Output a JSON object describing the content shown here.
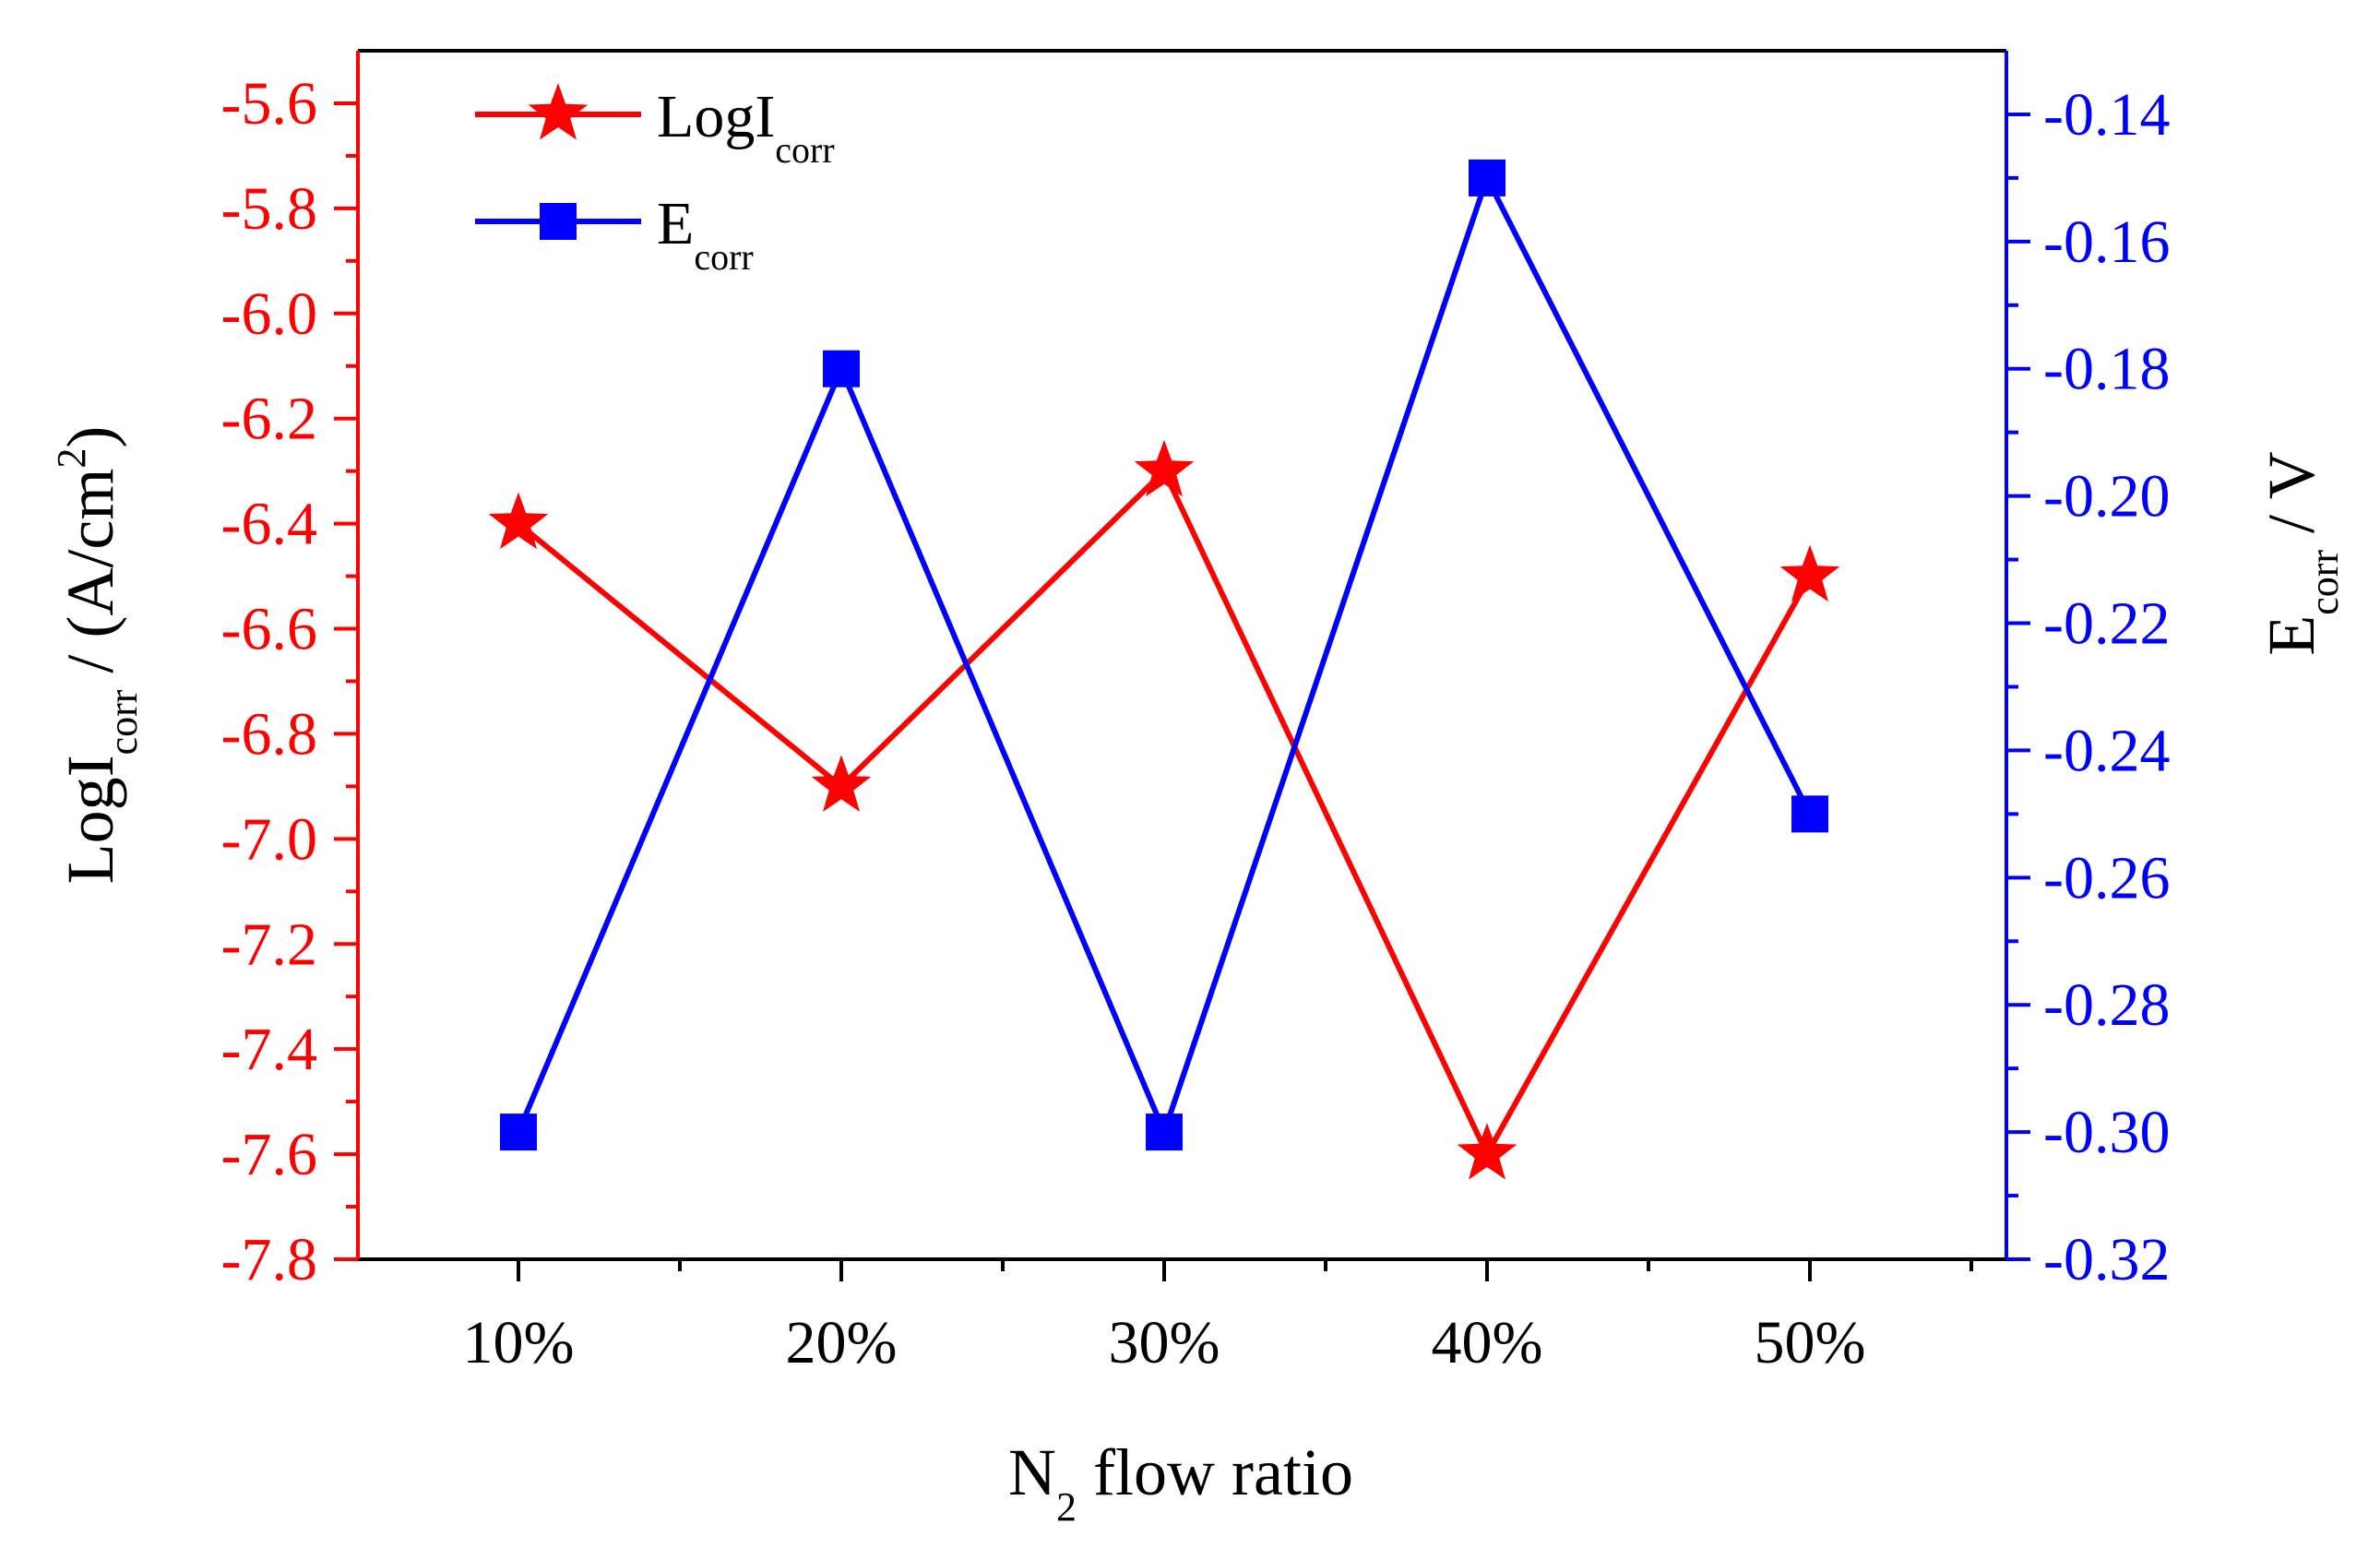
{
  "chart_data": {
    "type": "line",
    "dual_axis": true,
    "categories": [
      "10%",
      "20%",
      "30%",
      "40%",
      "50%"
    ],
    "xlabel_main": "N",
    "xlabel_sub": "2",
    "xlabel_rest": " flow ratio",
    "left_axis": {
      "label_main": "LogI",
      "label_sub": "corr",
      "label_rest": " / (A/cm",
      "label_sup": "2",
      "label_close": ")",
      "ylim": [
        -7.8,
        -5.5
      ],
      "ticks": [
        -7.8,
        -7.6,
        -7.4,
        -7.2,
        -7.0,
        -6.8,
        -6.6,
        -6.4,
        -6.2,
        -6.0,
        -5.8,
        -5.6
      ],
      "tick_labels": [
        "-7.8",
        "-7.6",
        "-7.4",
        "-7.2",
        "-7.0",
        "-6.8",
        "-6.6",
        "-6.4",
        "-6.2",
        "-6.0",
        "-5.8",
        "-5.6"
      ],
      "color": "#ff0000"
    },
    "right_axis": {
      "label_main": "E",
      "label_sub": "corr",
      "label_rest": " / V",
      "ylim": [
        -0.32,
        -0.13
      ],
      "ticks": [
        -0.32,
        -0.3,
        -0.28,
        -0.26,
        -0.24,
        -0.22,
        -0.2,
        -0.18,
        -0.16,
        -0.14
      ],
      "tick_labels": [
        "-0.32",
        "-0.30",
        "-0.28",
        "-0.26",
        "-0.24",
        "-0.22",
        "-0.20",
        "-0.18",
        "-0.16",
        "-0.14"
      ],
      "color": "#0000ff"
    },
    "series": [
      {
        "name_main": "LogI",
        "name_sub": "corr",
        "axis": "left",
        "marker": "star",
        "color": "#ff0000",
        "values": [
          -6.4,
          -6.9,
          -6.3,
          -7.6,
          -6.5
        ]
      },
      {
        "name_main": "E",
        "name_sub": "corr",
        "axis": "right",
        "marker": "square",
        "color": "#0000ff",
        "values": [
          -0.3,
          -0.18,
          -0.3,
          -0.15,
          -0.25
        ]
      }
    ],
    "legend_position": "top-left"
  }
}
